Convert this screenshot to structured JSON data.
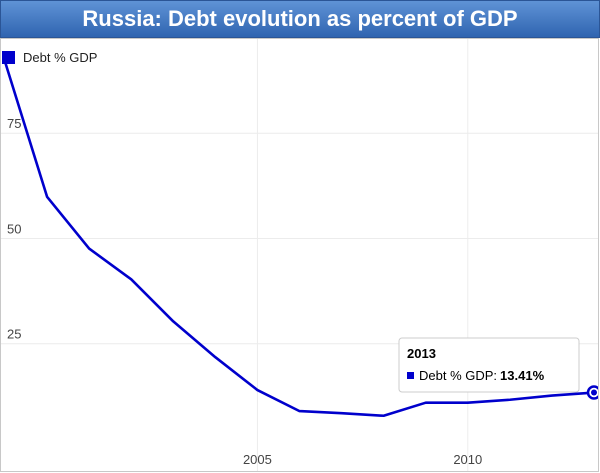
{
  "title": "Russia: Debt evolution as percent of GDP",
  "colors": {
    "series": "#0000cc",
    "title_bar": "#3d74c0",
    "grid": "#ececec"
  },
  "chart_data": {
    "type": "line",
    "title": "Russia: Debt evolution as percent of GDP",
    "xlabel": "",
    "ylabel": "",
    "x_ticks": [
      "2005",
      "2010"
    ],
    "y_ticks": [
      "25",
      "50",
      "75"
    ],
    "xlim": [
      1999,
      2013
    ],
    "ylim": [
      0,
      95
    ],
    "grid": true,
    "legend": "top-left",
    "series": [
      {
        "name": "Debt % GDP",
        "x": [
          1999,
          2000,
          2001,
          2002,
          2003,
          2004,
          2005,
          2006,
          2007,
          2008,
          2009,
          2010,
          2011,
          2012,
          2013
        ],
        "y": [
          92.0,
          59.9,
          47.6,
          40.3,
          30.3,
          21.8,
          14.0,
          9.0,
          8.5,
          7.9,
          11.0,
          11.0,
          11.7,
          12.7,
          13.41
        ]
      }
    ],
    "tooltip": {
      "title": "2013",
      "label": "Debt % GDP: ",
      "value": "13.41%"
    }
  }
}
